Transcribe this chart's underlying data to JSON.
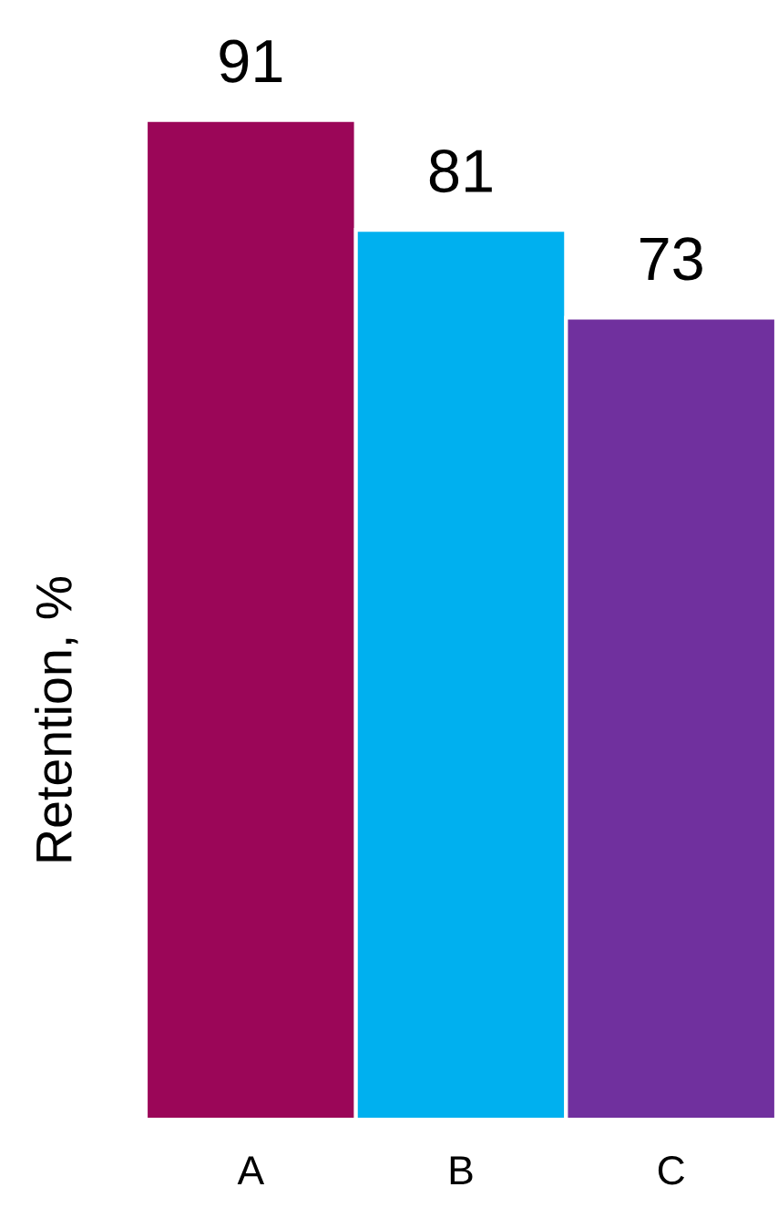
{
  "chart_data": {
    "type": "bar",
    "ylabel": "Retention, %",
    "categories": [
      "A",
      "B",
      "C"
    ],
    "values": [
      91,
      81,
      73
    ],
    "colors": [
      "#9b0658",
      "#00b0ef",
      "#70309e"
    ],
    "data_labels": true,
    "grid": false,
    "legend": false,
    "tick_labels": "x"
  }
}
